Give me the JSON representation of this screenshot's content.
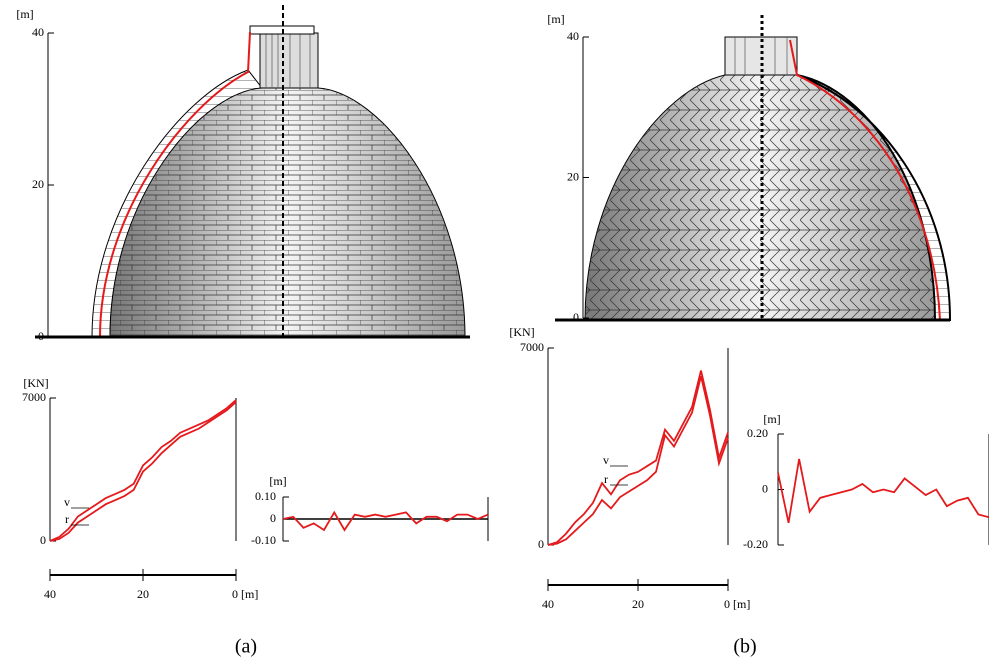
{
  "chart_data": [
    {
      "type": "axis",
      "ylabel": "[m]",
      "ylim": [
        0,
        40
      ],
      "yticks": [
        0,
        20,
        40
      ]
    },
    {
      "type": "line",
      "ylabel": "[KN]",
      "xlim": [
        40,
        0
      ],
      "xticks": [
        40,
        20,
        {
          "value": 0,
          "label": "0 [m]"
        }
      ],
      "ylim": [
        0,
        7000
      ],
      "yticks": [
        0,
        7000
      ],
      "x": [
        40,
        38,
        36,
        34,
        32,
        30,
        28,
        26,
        24,
        22,
        20,
        18,
        16,
        14,
        12,
        10,
        8,
        6,
        4,
        2,
        0
      ],
      "series": [
        {
          "name": "v",
          "color": "#e41a1c",
          "values": [
            0,
            200,
            600,
            1200,
            1500,
            1800,
            2100,
            2300,
            2500,
            2800,
            3700,
            4100,
            4600,
            4900,
            5300,
            5500,
            5700,
            5900,
            6200,
            6500,
            6900
          ]
        },
        {
          "name": "r",
          "color": "#e41a1c",
          "values": [
            0,
            100,
            400,
            900,
            1200,
            1500,
            1800,
            2000,
            2200,
            2500,
            3400,
            3800,
            4300,
            4700,
            5100,
            5300,
            5500,
            5800,
            6100,
            6400,
            6800
          ]
        }
      ]
    },
    {
      "type": "line",
      "ylabel": "[m]",
      "xlim": [
        40,
        0
      ],
      "zero_line": true,
      "ylim": [
        -0.1,
        0.1
      ],
      "yticks": [
        {
          "value": -0.1,
          "label": "-0.10"
        },
        0,
        {
          "value": 0.1,
          "label": "0.10"
        }
      ],
      "x": [
        40,
        38,
        36,
        34,
        32,
        30,
        28,
        26,
        24,
        22,
        20,
        18,
        16,
        14,
        12,
        10,
        8,
        6,
        4,
        2,
        0
      ],
      "series": [
        {
          "color": "#e41a1c",
          "values": [
            0,
            0.01,
            -0.04,
            -0.02,
            -0.05,
            0.03,
            -0.05,
            0.02,
            0.01,
            0.02,
            0.01,
            0.02,
            0.03,
            -0.02,
            0.01,
            0.01,
            -0.01,
            0.02,
            0.02,
            0,
            0.02
          ]
        }
      ]
    },
    {
      "type": "axis",
      "ylabel": "[m]",
      "ylim": [
        0,
        40
      ],
      "yticks": [
        0,
        20,
        40
      ]
    },
    {
      "type": "line",
      "ylabel": "[KN]",
      "xlim": [
        40,
        0
      ],
      "xticks": [
        40,
        20,
        {
          "value": 0,
          "label": "0 [m]"
        }
      ],
      "ylim": [
        0,
        7000
      ],
      "yticks": [
        0,
        7000
      ],
      "x": [
        40,
        38,
        36,
        34,
        32,
        30,
        28,
        26,
        24,
        22,
        20,
        18,
        16,
        14,
        12,
        10,
        8,
        6,
        4,
        2,
        0
      ],
      "series": [
        {
          "name": "v",
          "color": "#e41a1c",
          "values": [
            0,
            100,
            400,
            800,
            1100,
            1500,
            2200,
            1800,
            2300,
            2500,
            2600,
            2800,
            3000,
            4100,
            3700,
            4300,
            4900,
            6200,
            4800,
            3100,
            4000
          ]
        },
        {
          "name": "r",
          "color": "#e41a1c",
          "values": [
            0,
            50,
            200,
            500,
            800,
            1100,
            1600,
            1300,
            1700,
            1900,
            2100,
            2300,
            2600,
            3900,
            3500,
            4100,
            4700,
            6000,
            4600,
            2900,
            3800
          ]
        }
      ]
    },
    {
      "type": "line",
      "ylabel": "[m]",
      "xlim": [
        40,
        0
      ],
      "ylim": [
        -0.2,
        0.2
      ],
      "yticks": [
        {
          "value": -0.2,
          "label": "-0.20"
        },
        0,
        {
          "value": 0.2,
          "label": "0.20"
        }
      ],
      "x": [
        40,
        38,
        36,
        34,
        32,
        30,
        28,
        26,
        24,
        22,
        20,
        18,
        16,
        14,
        12,
        10,
        8,
        6,
        4,
        2,
        0
      ],
      "series": [
        {
          "color": "#e41a1c",
          "values": [
            0.06,
            -0.12,
            0.11,
            -0.08,
            -0.03,
            -0.02,
            -0.01,
            0,
            0.02,
            -0.01,
            0,
            -0.01,
            0.04,
            0.01,
            -0.02,
            0,
            -0.06,
            -0.04,
            -0.03,
            -0.09,
            -0.1
          ]
        }
      ]
    }
  ],
  "captions": [
    "(a)",
    "(b)"
  ]
}
